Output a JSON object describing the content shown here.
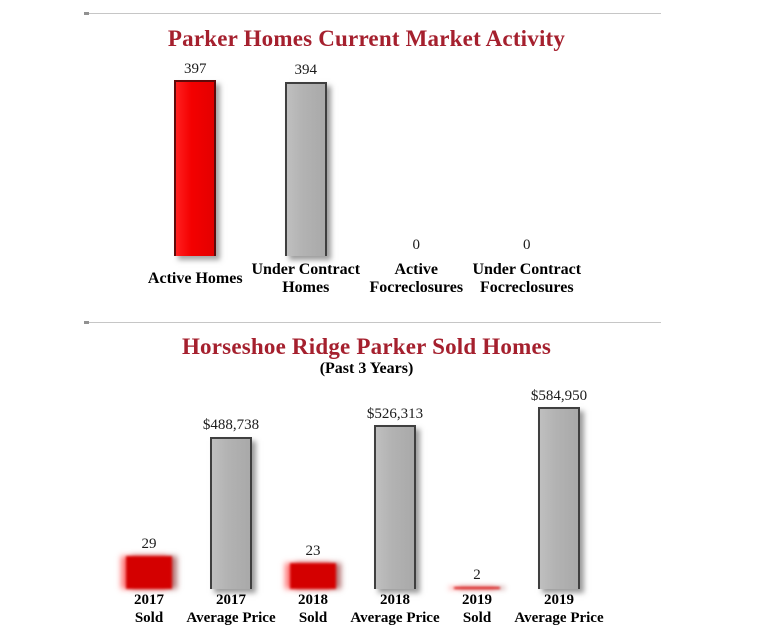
{
  "colors": {
    "title_red": "#A5202E",
    "bar_red": "#F40000",
    "bar_red_soft": "#D40000",
    "bar_silver": "#B3B3B3",
    "bar_border_dark": "#3F3F3F",
    "bar_border_red": "#5F0A0A",
    "divider": "#C6C6C6",
    "value_text": "#1B1B1B",
    "label_text": "#000000"
  },
  "chart_data": [
    {
      "type": "bar",
      "title": "Parker Homes Current Market Activity",
      "xlabel": "",
      "ylabel": "",
      "grid": false,
      "legend": "none",
      "bars": [
        {
          "category_lines": [
            "Active Homes"
          ],
          "value": 397,
          "value_label": "397",
          "color": "red",
          "scale": "count"
        },
        {
          "category_lines": [
            "Under Contract",
            "Homes"
          ],
          "value": 394,
          "value_label": "394",
          "color": "silver",
          "scale": "count"
        },
        {
          "category_lines": [
            "Active",
            "Focreclosures"
          ],
          "value": 0,
          "value_label": "0",
          "color": "red",
          "scale": "count"
        },
        {
          "category_lines": [
            "Under Contract",
            "Focreclosures"
          ],
          "value": 0,
          "value_label": "0",
          "color": "silver",
          "scale": "count"
        }
      ],
      "layout": {
        "scales": {
          "count": 0.443
        },
        "red_style": "crisp"
      }
    },
    {
      "type": "bar",
      "title": "Horseshoe Ridge Parker Sold Homes",
      "subtitle": "(Past 3 Years)",
      "xlabel": "",
      "ylabel": "",
      "grid": false,
      "legend": "none",
      "bars": [
        {
          "category_lines": [
            "2017",
            "Sold"
          ],
          "value": 29,
          "value_label": "29",
          "color": "red",
          "scale": "sold"
        },
        {
          "category_lines": [
            "2017",
            "Average Price"
          ],
          "value": 488738,
          "value_label": "$488,738",
          "color": "silver",
          "scale": "price"
        },
        {
          "category_lines": [
            "2018",
            "Sold"
          ],
          "value": 23,
          "value_label": "23",
          "color": "red",
          "scale": "sold"
        },
        {
          "category_lines": [
            "2018",
            "Average Price"
          ],
          "value": 526313,
          "value_label": "$526,313",
          "color": "silver",
          "scale": "price"
        },
        {
          "category_lines": [
            "2019",
            "Sold"
          ],
          "value": 2,
          "value_label": "2",
          "color": "red",
          "scale": "sold"
        },
        {
          "category_lines": [
            "2019",
            "Average Price"
          ],
          "value": 584950,
          "value_label": "$584,950",
          "color": "silver",
          "scale": "price"
        }
      ],
      "layout": {
        "scales": {
          "sold": 1.15,
          "price": 0.000311
        },
        "red_style": "soft"
      }
    }
  ]
}
